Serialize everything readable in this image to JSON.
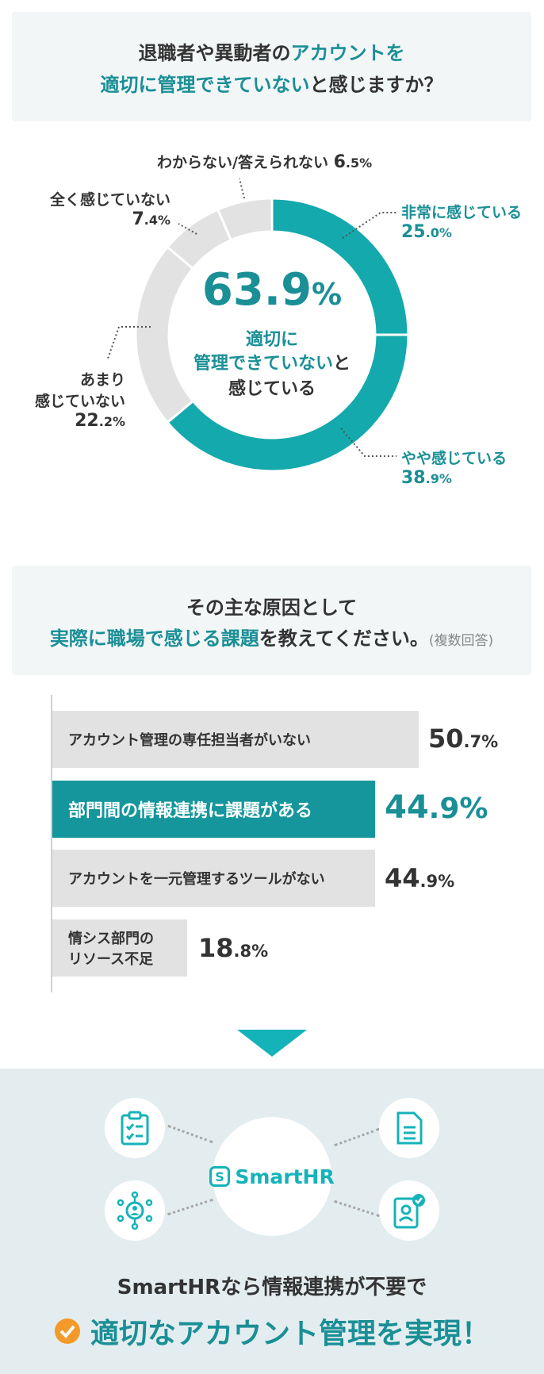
{
  "q1": {
    "line1_a": "退職者や異動者の",
    "line1_b": "アカウントを",
    "line2_a": "適切に管理できていない",
    "line2_b": "と感じますか？"
  },
  "donut_center": {
    "value": "63.9",
    "unit": "%",
    "line1": "適切に",
    "line2_a": "管理できていない",
    "line2_b": "と",
    "line3": "感じている"
  },
  "donut_labels": {
    "very": {
      "name": "非常に感じている",
      "int": "25",
      "dec": ".0",
      "pct": "%"
    },
    "some": {
      "name": "やや感じている",
      "int": "38",
      "dec": ".9",
      "pct": "%"
    },
    "not_much": {
      "name1": "あまり",
      "name2": "感じていない",
      "int": "22",
      "dec": ".2",
      "pct": "%"
    },
    "not_at_all": {
      "name": "全く感じていない",
      "int": "7",
      "dec": ".4",
      "pct": "%"
    },
    "unknown": {
      "name": "わからない/答えられない",
      "int": "6",
      "dec": ".5",
      "pct": "%"
    }
  },
  "q2": {
    "line1": "その主な原因として",
    "line2_a": "実際に職場で感じる課題",
    "line2_b": "を教えてください。",
    "note": "(複数回答)"
  },
  "bars": [
    {
      "label": "アカウント管理の専任担当者がいない",
      "int": "50",
      "dec": ".7",
      "pct": "%"
    },
    {
      "label": "部門間の情報連携に課題がある",
      "int": "44",
      "dec": ".9",
      "pct": "%"
    },
    {
      "label": "アカウントを一元管理するツールがない",
      "int": "44",
      "dec": ".9",
      "pct": "%"
    },
    {
      "label1": "情シス部門の",
      "label2": "リソース不足",
      "int": "18",
      "dec": ".8",
      "pct": "%"
    }
  ],
  "bottom": {
    "logo": "SmartHR",
    "line1": "SmartHRなら情報連携が不要で",
    "line2": "適切なアカウント管理を実現！"
  },
  "colors": {
    "teal": "#14969c",
    "teal_bright": "#14b3b9",
    "gray": "#e2e2e2",
    "orange": "#f39a2a"
  },
  "chart_data": [
    {
      "type": "pie",
      "categories": [
        "非常に感じている",
        "やや感じている",
        "あまり感じていない",
        "全く感じていない",
        "わからない/答えられない"
      ],
      "values": [
        25.0,
        38.9,
        22.2,
        7.4,
        6.5
      ]
    },
    {
      "type": "bar",
      "categories": [
        "アカウント管理の専任担当者がいない",
        "部門間の情報連携に課題がある",
        "アカウントを一元管理するツールがない",
        "情シス部門のリソース不足"
      ],
      "values": [
        50.7,
        44.9,
        44.9,
        18.8
      ]
    }
  ]
}
